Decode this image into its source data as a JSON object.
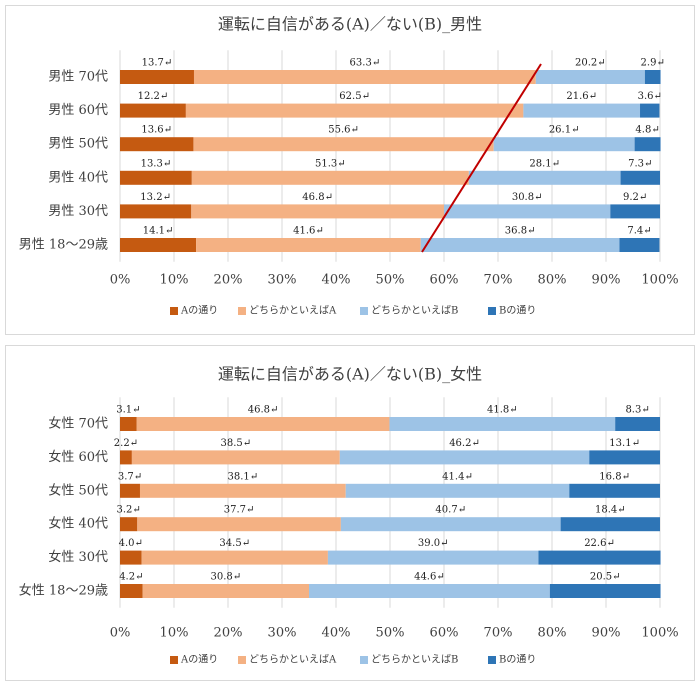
{
  "chart_data": [
    {
      "type": "stacked_bar_horizontal",
      "title": "運転に自信がある(A)／ない(B)_男性",
      "categories": [
        "男性 70代",
        "男性 60代",
        "男性 50代",
        "男性 40代",
        "男性 30代",
        "男性 18〜29歳"
      ],
      "series": [
        {
          "name": "Aの通り",
          "color": "#c55a11",
          "values": [
            13.7,
            12.2,
            13.6,
            13.3,
            13.2,
            14.1
          ],
          "value_labels": [
            "13.7↵",
            "12.2↵",
            "13.6↵",
            "13.3↵",
            "13.2↵",
            "14.1↵"
          ]
        },
        {
          "name": "どちらかといえばA",
          "color": "#f4b183",
          "values": [
            63.3,
            62.5,
            55.6,
            51.3,
            46.8,
            41.6
          ],
          "value_labels": [
            "63.3↵",
            "62.5↵",
            "55.6↵",
            "51.3↵",
            "46.8↵",
            "41.6↵"
          ]
        },
        {
          "name": "どちらかといえばB",
          "color": "#9dc3e6",
          "values": [
            20.2,
            21.6,
            26.1,
            28.1,
            30.8,
            36.8
          ],
          "value_labels": [
            "20.2↵",
            "21.6↵",
            "26.1↵",
            "28.1↵",
            "30.8↵",
            "36.8↵"
          ]
        },
        {
          "name": "Bの通り",
          "color": "#2e75b6",
          "values": [
            2.9,
            3.6,
            4.8,
            7.3,
            9.2,
            7.4
          ],
          "value_labels": [
            "2.9↵",
            "3.6↵",
            "4.8↵",
            "7.3↵",
            "9.2↵",
            "7.4↵"
          ]
        }
      ],
      "xlim": [
        0,
        100
      ],
      "xticks": [
        {
          "value": 0,
          "label": "0%"
        },
        {
          "value": 10,
          "label": "10%"
        },
        {
          "value": 20,
          "label": "20%"
        },
        {
          "value": 30,
          "label": "30%"
        },
        {
          "value": 40,
          "label": "40%"
        },
        {
          "value": 50,
          "label": "50%"
        },
        {
          "value": 60,
          "label": "60%"
        },
        {
          "value": 70,
          "label": "70%"
        },
        {
          "value": 80,
          "label": "80%"
        },
        {
          "value": 90,
          "label": "90%"
        },
        {
          "value": 100,
          "label": "100%"
        }
      ],
      "grid": true,
      "legend": "bottom"
    },
    {
      "type": "stacked_bar_horizontal",
      "title": "運転に自信がある(A)／ない(B)_女性",
      "categories": [
        "女性 70代",
        "女性 60代",
        "女性 50代",
        "女性 40代",
        "女性 30代",
        "女性 18〜29歳"
      ],
      "series": [
        {
          "name": "Aの通り",
          "color": "#c55a11",
          "values": [
            3.1,
            2.2,
            3.7,
            3.2,
            4.0,
            4.2
          ],
          "value_labels": [
            "3.1↵",
            "2.2↵",
            "3.7↵",
            "3.2↵",
            "4.0↵",
            "4.2↵"
          ]
        },
        {
          "name": "どちらかといえばA",
          "color": "#f4b183",
          "values": [
            46.8,
            38.5,
            38.1,
            37.7,
            34.5,
            30.8
          ],
          "value_labels": [
            "46.8↵",
            "38.5↵",
            "38.1↵",
            "37.7↵",
            "34.5↵",
            "30.8↵"
          ]
        },
        {
          "name": "どちらかといえばB",
          "color": "#9dc3e6",
          "values": [
            41.8,
            46.2,
            41.4,
            40.7,
            39.0,
            44.6
          ],
          "value_labels": [
            "41.8↵",
            "46.2↵",
            "41.4↵",
            "40.7↵",
            "39.0↵",
            "44.6↵"
          ]
        },
        {
          "name": "Bの通り",
          "color": "#2e75b6",
          "values": [
            8.3,
            13.1,
            16.8,
            18.4,
            22.6,
            20.5
          ],
          "value_labels": [
            "8.3↵",
            "13.1↵",
            "16.8↵",
            "18.4↵",
            "22.6↵",
            "20.5↵"
          ]
        }
      ],
      "xlim": [
        0,
        100
      ],
      "xticks": [
        {
          "value": 0,
          "label": "0%"
        },
        {
          "value": 10,
          "label": "10%"
        },
        {
          "value": 20,
          "label": "20%"
        },
        {
          "value": 30,
          "label": "30%"
        },
        {
          "value": 40,
          "label": "40%"
        },
        {
          "value": 50,
          "label": "50%"
        },
        {
          "value": 60,
          "label": "60%"
        },
        {
          "value": 70,
          "label": "70%"
        },
        {
          "value": 80,
          "label": "80%"
        },
        {
          "value": 90,
          "label": "90%"
        },
        {
          "value": 100,
          "label": "100%"
        }
      ],
      "grid": true,
      "legend": "bottom"
    }
  ]
}
